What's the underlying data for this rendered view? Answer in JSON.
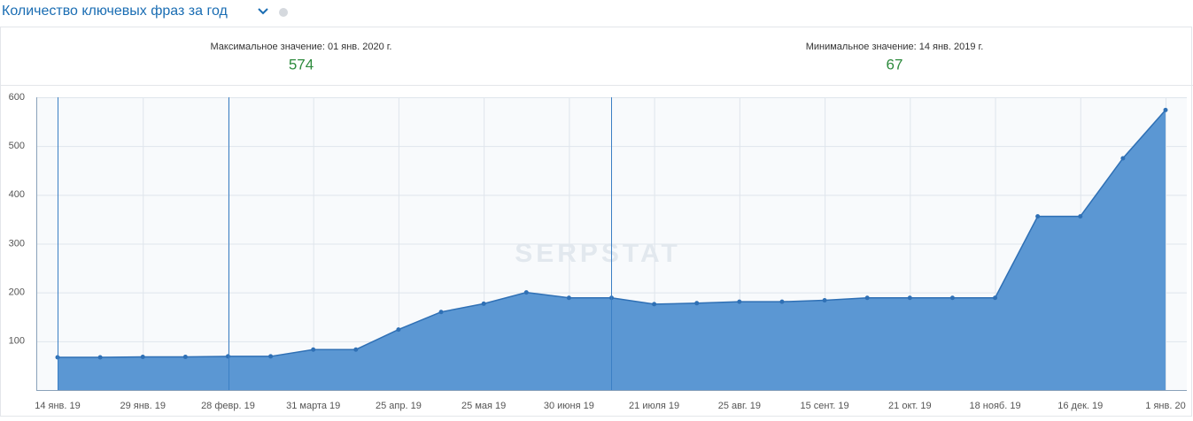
{
  "header": {
    "title": "Количество ключевых фраз за год"
  },
  "summary": [
    {
      "label": "Максимальное значение: 01 янв. 2020 г.",
      "value": "574"
    },
    {
      "label": "Минимальное значение: 14 янв. 2019 г.",
      "value": "67"
    }
  ],
  "watermark": "SERPSTAT",
  "chart_data": {
    "type": "area",
    "categories": [
      "14 янв. 19",
      null,
      "29 янв. 19",
      null,
      "28 февр. 19",
      null,
      "31 марта 19",
      null,
      "25 апр. 19",
      null,
      "25 мая 19",
      null,
      "30 июня 19",
      null,
      "21 июля 19",
      null,
      "25 авг. 19",
      null,
      "15 сент. 19",
      null,
      "21 окт. 19",
      null,
      "18 нояб. 19",
      null,
      "16 дек. 19",
      null,
      "1 янв. 20"
    ],
    "values": [
      67,
      67,
      68,
      68,
      69,
      69,
      83,
      83,
      124,
      160,
      177,
      200,
      189,
      189,
      176,
      178,
      181,
      181,
      184,
      189,
      189,
      189,
      189,
      356,
      356,
      475,
      574
    ],
    "color": "#5b97d3",
    "ylim": [
      0,
      600
    ],
    "yticks": [
      100,
      200,
      300,
      400,
      500,
      600
    ],
    "grid": true
  }
}
